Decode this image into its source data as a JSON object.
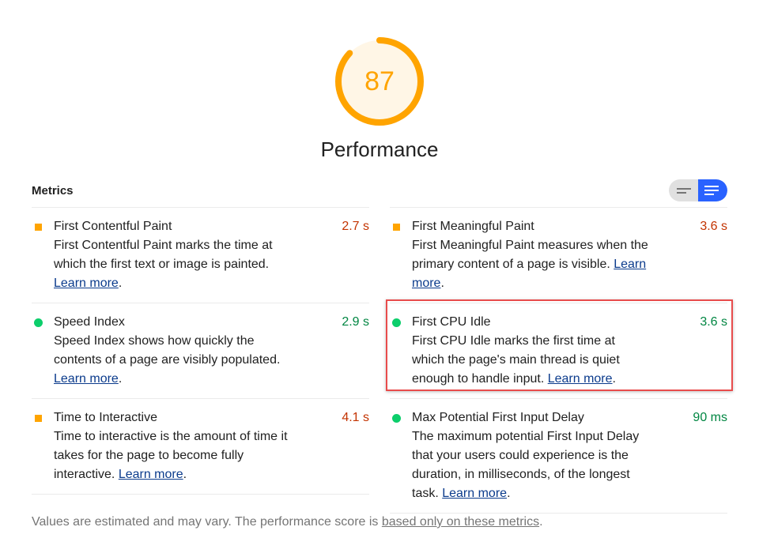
{
  "gauge": {
    "score": "87",
    "fraction": 0.87,
    "color": "#ffa400",
    "bg": "#fff6e6"
  },
  "category_title": "Performance",
  "metrics_label": "Metrics",
  "view_toggle": {
    "options": [
      "opportunities-view",
      "list-view"
    ],
    "active": "list-view"
  },
  "left": [
    {
      "name": "First Contentful Paint",
      "value": "2.7 s",
      "status": "average",
      "desc": "First Contentful Paint marks the time at which the first text or image is painted. ",
      "link": "Learn more"
    },
    {
      "name": "Speed Index",
      "value": "2.9 s",
      "status": "pass",
      "desc": "Speed Index shows how quickly the contents of a page are visibly populated. ",
      "link": "Learn more"
    },
    {
      "name": "Time to Interactive",
      "value": "4.1 s",
      "status": "average",
      "desc": "Time to interactive is the amount of time it takes for the page to become fully interactive. ",
      "link": "Learn more"
    }
  ],
  "right": [
    {
      "name": "First Meaningful Paint",
      "value": "3.6 s",
      "status": "average",
      "desc": "First Meaningful Paint measures when the primary content of a page is visible. ",
      "link": "Learn more"
    },
    {
      "name": "First CPU Idle",
      "value": "3.6 s",
      "status": "pass",
      "desc": "First CPU Idle marks the first time at which the page's main thread is quiet enough to handle input. ",
      "link": "Learn more"
    },
    {
      "name": "Max Potential First Input Delay",
      "value": "90 ms",
      "status": "pass",
      "desc": "The maximum potential First Input Delay that your users could experience is the duration, in milliseconds, of the longest task. ",
      "link": "Learn more"
    }
  ],
  "footer": {
    "text": "Values are estimated and may vary. The performance score is ",
    "link": "based only on these metrics",
    "end": "."
  }
}
